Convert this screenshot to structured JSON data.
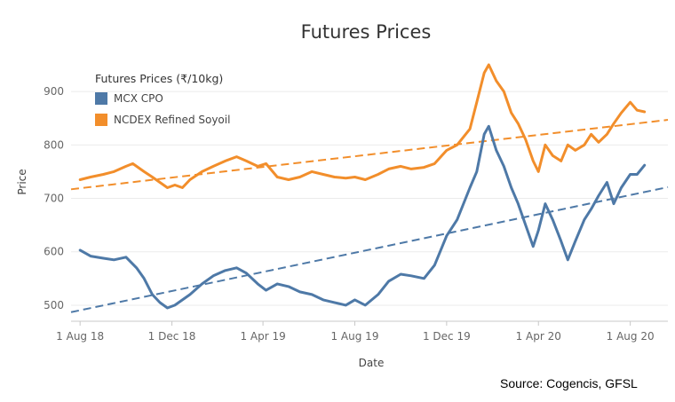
{
  "chart_data": {
    "type": "line",
    "title": "Futures Prices",
    "xlabel": "Date",
    "ylabel": "Price",
    "source": "Source: Cogencis, GFSL",
    "x_ticks": [
      "1 Aug 18",
      "1 Dec 18",
      "1 Apr 19",
      "1 Aug 19",
      "1 Dec 19",
      "1 Apr 20",
      "1 Aug 20"
    ],
    "y_ticks": [
      500,
      600,
      700,
      800,
      900
    ],
    "xlim": [
      "2018-07-20",
      "2020-09-20"
    ],
    "ylim": [
      470,
      975
    ],
    "grid": "horizontal",
    "legend": {
      "title": "Futures Prices (₹/10kg)",
      "position": "top-left",
      "entries": [
        "MCX CPO",
        "NCDEX Refined Soyoil"
      ]
    },
    "series": [
      {
        "name": "MCX CPO",
        "color": "#4e79a7",
        "points": [
          [
            "2018-08-01",
            603
          ],
          [
            "2018-08-15",
            592
          ],
          [
            "2018-09-01",
            588
          ],
          [
            "2018-09-15",
            585
          ],
          [
            "2018-10-01",
            590
          ],
          [
            "2018-10-15",
            570
          ],
          [
            "2018-10-25",
            550
          ],
          [
            "2018-11-05",
            520
          ],
          [
            "2018-11-15",
            505
          ],
          [
            "2018-11-25",
            495
          ],
          [
            "2018-12-05",
            500
          ],
          [
            "2018-12-15",
            510
          ],
          [
            "2018-12-25",
            520
          ],
          [
            "2019-01-10",
            540
          ],
          [
            "2019-01-25",
            555
          ],
          [
            "2019-02-10",
            565
          ],
          [
            "2019-02-25",
            570
          ],
          [
            "2019-03-10",
            560
          ],
          [
            "2019-03-25",
            540
          ],
          [
            "2019-04-05",
            528
          ],
          [
            "2019-04-20",
            540
          ],
          [
            "2019-05-05",
            535
          ],
          [
            "2019-05-20",
            525
          ],
          [
            "2019-06-05",
            520
          ],
          [
            "2019-06-20",
            510
          ],
          [
            "2019-07-05",
            505
          ],
          [
            "2019-07-20",
            500
          ],
          [
            "2019-08-01",
            510
          ],
          [
            "2019-08-15",
            500
          ],
          [
            "2019-09-01",
            520
          ],
          [
            "2019-09-15",
            545
          ],
          [
            "2019-10-01",
            558
          ],
          [
            "2019-10-15",
            555
          ],
          [
            "2019-11-01",
            550
          ],
          [
            "2019-11-15",
            575
          ],
          [
            "2019-12-01",
            630
          ],
          [
            "2019-12-15",
            660
          ],
          [
            "2020-01-01",
            720
          ],
          [
            "2020-01-10",
            750
          ],
          [
            "2020-01-20",
            820
          ],
          [
            "2020-01-26",
            835
          ],
          [
            "2020-02-05",
            790
          ],
          [
            "2020-02-15",
            760
          ],
          [
            "2020-02-25",
            720
          ],
          [
            "2020-03-05",
            690
          ],
          [
            "2020-03-15",
            650
          ],
          [
            "2020-03-25",
            610
          ],
          [
            "2020-04-01",
            640
          ],
          [
            "2020-04-10",
            690
          ],
          [
            "2020-04-20",
            660
          ],
          [
            "2020-05-01",
            620
          ],
          [
            "2020-05-10",
            585
          ],
          [
            "2020-05-20",
            620
          ],
          [
            "2020-06-01",
            660
          ],
          [
            "2020-06-10",
            680
          ],
          [
            "2020-06-20",
            705
          ],
          [
            "2020-07-01",
            730
          ],
          [
            "2020-07-10",
            690
          ],
          [
            "2020-07-20",
            720
          ],
          [
            "2020-08-01",
            745
          ],
          [
            "2020-08-10",
            745
          ],
          [
            "2020-08-20",
            762
          ]
        ],
        "trend": [
          [
            "2018-07-20",
            487
          ],
          [
            "2020-09-20",
            721
          ]
        ]
      },
      {
        "name": "NCDEX Refined Soyoil",
        "color": "#f28e2b",
        "points": [
          [
            "2018-08-01",
            735
          ],
          [
            "2018-08-15",
            740
          ],
          [
            "2018-09-01",
            745
          ],
          [
            "2018-09-15",
            750
          ],
          [
            "2018-10-01",
            760
          ],
          [
            "2018-10-10",
            765
          ],
          [
            "2018-10-25",
            750
          ],
          [
            "2018-11-05",
            740
          ],
          [
            "2018-11-15",
            730
          ],
          [
            "2018-11-25",
            720
          ],
          [
            "2018-12-05",
            725
          ],
          [
            "2018-12-15",
            720
          ],
          [
            "2018-12-25",
            735
          ],
          [
            "2019-01-10",
            750
          ],
          [
            "2019-01-25",
            760
          ],
          [
            "2019-02-10",
            770
          ],
          [
            "2019-02-25",
            778
          ],
          [
            "2019-03-10",
            770
          ],
          [
            "2019-03-25",
            760
          ],
          [
            "2019-04-05",
            765
          ],
          [
            "2019-04-20",
            740
          ],
          [
            "2019-05-05",
            735
          ],
          [
            "2019-05-20",
            740
          ],
          [
            "2019-06-05",
            750
          ],
          [
            "2019-06-20",
            745
          ],
          [
            "2019-07-05",
            740
          ],
          [
            "2019-07-20",
            738
          ],
          [
            "2019-08-01",
            740
          ],
          [
            "2019-08-15",
            735
          ],
          [
            "2019-09-01",
            745
          ],
          [
            "2019-09-15",
            755
          ],
          [
            "2019-10-01",
            760
          ],
          [
            "2019-10-15",
            755
          ],
          [
            "2019-11-01",
            758
          ],
          [
            "2019-11-15",
            765
          ],
          [
            "2019-12-01",
            790
          ],
          [
            "2019-12-15",
            800
          ],
          [
            "2020-01-01",
            830
          ],
          [
            "2020-01-10",
            880
          ],
          [
            "2020-01-20",
            935
          ],
          [
            "2020-01-26",
            950
          ],
          [
            "2020-02-05",
            920
          ],
          [
            "2020-02-15",
            900
          ],
          [
            "2020-02-25",
            860
          ],
          [
            "2020-03-05",
            840
          ],
          [
            "2020-03-15",
            810
          ],
          [
            "2020-03-25",
            770
          ],
          [
            "2020-04-01",
            750
          ],
          [
            "2020-04-10",
            800
          ],
          [
            "2020-04-20",
            780
          ],
          [
            "2020-05-01",
            770
          ],
          [
            "2020-05-10",
            800
          ],
          [
            "2020-05-20",
            790
          ],
          [
            "2020-06-01",
            800
          ],
          [
            "2020-06-10",
            820
          ],
          [
            "2020-06-20",
            805
          ],
          [
            "2020-07-01",
            820
          ],
          [
            "2020-07-10",
            840
          ],
          [
            "2020-07-20",
            860
          ],
          [
            "2020-08-01",
            880
          ],
          [
            "2020-08-10",
            865
          ],
          [
            "2020-08-20",
            862
          ]
        ],
        "trend": [
          [
            "2018-07-20",
            717
          ],
          [
            "2020-09-20",
            847
          ]
        ]
      }
    ]
  }
}
